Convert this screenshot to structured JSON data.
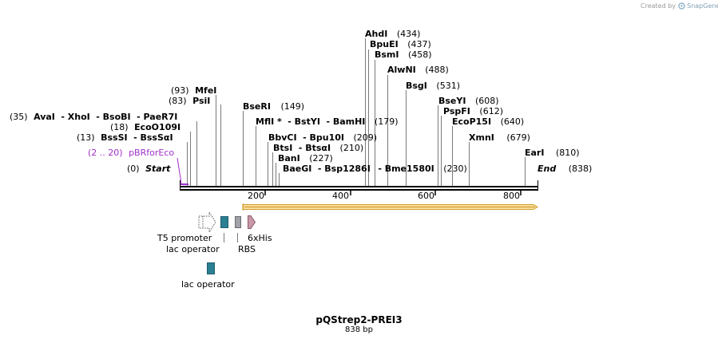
{
  "credit": {
    "prefix": "Created by",
    "brand": "SnapGene"
  },
  "map": {
    "name": "pQStrep2-PREI3",
    "length_label": "838 bp",
    "length": 838
  },
  "ends": {
    "start": {
      "pos": "(0)",
      "name": "Start"
    },
    "end": {
      "name": "End",
      "pos": "(838)"
    }
  },
  "ruler": {
    "ticks": [
      "200",
      "400",
      "600",
      "800"
    ]
  },
  "primer": {
    "range": "(2 .. 20)",
    "name": "pBRforEco"
  },
  "sites": {
    "ahdi": {
      "name": "AhdI",
      "pos": "(434)"
    },
    "bpuei": {
      "name": "BpuEI",
      "pos": "(437)"
    },
    "bsmi": {
      "name": "BsmI",
      "pos": "(458)"
    },
    "alwni": {
      "name": "AlwNI",
      "pos": "(488)"
    },
    "bsgi": {
      "name": "BsgI",
      "pos": "(531)"
    },
    "mfei": {
      "pos": "(93)",
      "name": "MfeI"
    },
    "psii": {
      "pos": "(83)",
      "name": "PsiI"
    },
    "bseri": {
      "name": "BseRI",
      "pos": "(149)"
    },
    "bseyi": {
      "name": "BseYI",
      "pos": "(608)"
    },
    "pspfi": {
      "name": "PspFI",
      "pos": "(612)"
    },
    "ecop15i": {
      "name": "EcoP15I",
      "pos": "(640)"
    },
    "xmni": {
      "name": "XmnI",
      "pos": "(679)"
    },
    "eari": {
      "name": "EarI",
      "pos": "(810)"
    },
    "ava": {
      "pos": "(35)",
      "name1": "AvaI",
      "name2": "- XhoI",
      "name3": "- BsoBI",
      "name4": "- PaeR7I"
    },
    "eco109": {
      "pos": "(18)",
      "name": "EcoO109I"
    },
    "bsssi": {
      "pos": "(13)",
      "name1": "BssSI",
      "name2": "- BssSαI"
    },
    "mfli": {
      "name1": "MflI *",
      "name2": "- BstYI",
      "name3": "- BamHI",
      "pos": "(179)"
    },
    "bbvci": {
      "name1": "BbvCI",
      "name2": "- Bpu10I",
      "pos": "(209)"
    },
    "btsi": {
      "name1": "BtsI",
      "name2": "- BtsαI",
      "pos": "(210)"
    },
    "bani": {
      "name": "BanI",
      "pos": "(227)"
    },
    "baegi": {
      "name1": "BaeGI",
      "name2": "- Bsp1286I",
      "name3": "- Bme1580I",
      "pos": "(230)"
    }
  },
  "features": {
    "t5_promoter": "T5 promoter",
    "lac_operator_1": "lac operator",
    "rbs": "RBS",
    "his": "6xHis",
    "lac_operator_2": "lac operator"
  },
  "colors": {
    "backbone": "#000000",
    "orf_fill": "#fbe3a6",
    "orf_border": "#d39a28",
    "primer": "#a030c8",
    "lac_operator": "#2b7f93",
    "rbs": "#a1a1aa",
    "his": "#c898a8",
    "leader": "#7a7a7a"
  }
}
